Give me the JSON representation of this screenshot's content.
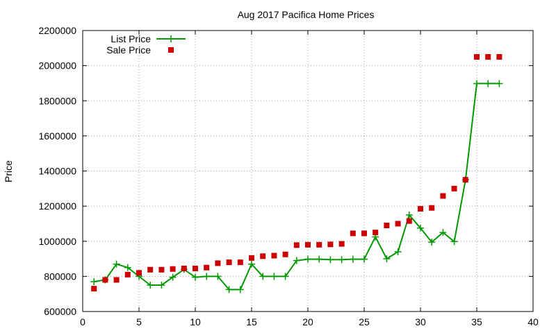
{
  "chart_data": {
    "type": "line",
    "title": "Aug 2017 Pacifica Home Prices",
    "xlabel": "",
    "ylabel": "Price",
    "xlim": [
      0,
      40
    ],
    "ylim": [
      600000,
      2200000
    ],
    "x_ticks": [
      0,
      5,
      10,
      15,
      20,
      25,
      30,
      35,
      40
    ],
    "y_ticks": [
      600000,
      800000,
      1000000,
      1200000,
      1400000,
      1600000,
      1800000,
      2000000,
      2200000
    ],
    "grid": true,
    "legend_position": "top-left",
    "series": [
      {
        "name": "List Price",
        "style": "line+cross",
        "color": "#009900",
        "x": [
          1,
          2,
          3,
          4,
          5,
          6,
          7,
          8,
          9,
          10,
          11,
          12,
          13,
          14,
          15,
          16,
          17,
          18,
          19,
          20,
          21,
          22,
          23,
          24,
          25,
          26,
          27,
          28,
          29,
          30,
          31,
          32,
          33,
          34,
          35,
          36,
          37
        ],
        "y": [
          770000,
          780000,
          870000,
          850000,
          800000,
          750000,
          750000,
          795000,
          840000,
          795000,
          800000,
          800000,
          725000,
          725000,
          870000,
          800000,
          800000,
          800000,
          890000,
          898000,
          898000,
          895000,
          895000,
          898000,
          898000,
          1025000,
          900000,
          940000,
          1150000,
          1075000,
          995000,
          1050000,
          998000,
          1350000,
          1898000,
          1898000,
          1898000
        ]
      },
      {
        "name": "Sale Price",
        "style": "square",
        "color": "#cc0000",
        "x": [
          1,
          2,
          3,
          4,
          5,
          6,
          7,
          8,
          9,
          10,
          11,
          12,
          13,
          14,
          15,
          16,
          17,
          18,
          19,
          20,
          21,
          22,
          23,
          24,
          25,
          26,
          27,
          28,
          29,
          30,
          31,
          32,
          33,
          34,
          35,
          36,
          37
        ],
        "y": [
          730000,
          780000,
          780000,
          810000,
          820000,
          838000,
          838000,
          842000,
          845000,
          845000,
          850000,
          875000,
          880000,
          880000,
          905000,
          915000,
          918000,
          925000,
          978000,
          980000,
          980000,
          982000,
          985000,
          1045000,
          1045000,
          1050000,
          1090000,
          1100000,
          1115000,
          1185000,
          1190000,
          1258000,
          1300000,
          1350000,
          2050000,
          2050000,
          2050000
        ]
      }
    ]
  }
}
